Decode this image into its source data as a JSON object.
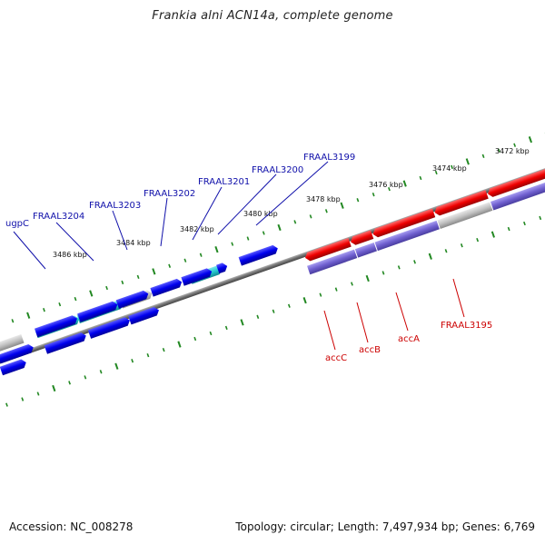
{
  "title": "Frankia alni ACN14a, complete genome",
  "footer": {
    "accession": "Accession: NC_008278",
    "stats": "Topology: circular; Length: 7,497,934 bp; Genes: 6,769"
  },
  "colors": {
    "forward_gene": "#0000ee",
    "reverse_gene": "#ee0000",
    "highlight_forward": "#22c8d0",
    "highlight_reverse": "#7060d0",
    "neutral_gene": "#c0c0c0",
    "backbone": "#707070",
    "tick": "#228822",
    "blue_label": "#1010aa",
    "red_label": "#cc0000"
  },
  "scale_labels": [
    "3472 kbp",
    "3474 kbp",
    "3476 kbp",
    "3478 kbp",
    "3480 kbp",
    "3482 kbp",
    "3484 kbp",
    "3486 kbp"
  ],
  "gene_labels": {
    "blue": [
      "ugpC",
      "FRAAL3204",
      "FRAAL3203",
      "FRAAL3202",
      "FRAAL3201",
      "FRAAL3200",
      "FRAAL3199"
    ],
    "red": [
      "accC",
      "accB",
      "accA",
      "FRAAL3195"
    ]
  }
}
